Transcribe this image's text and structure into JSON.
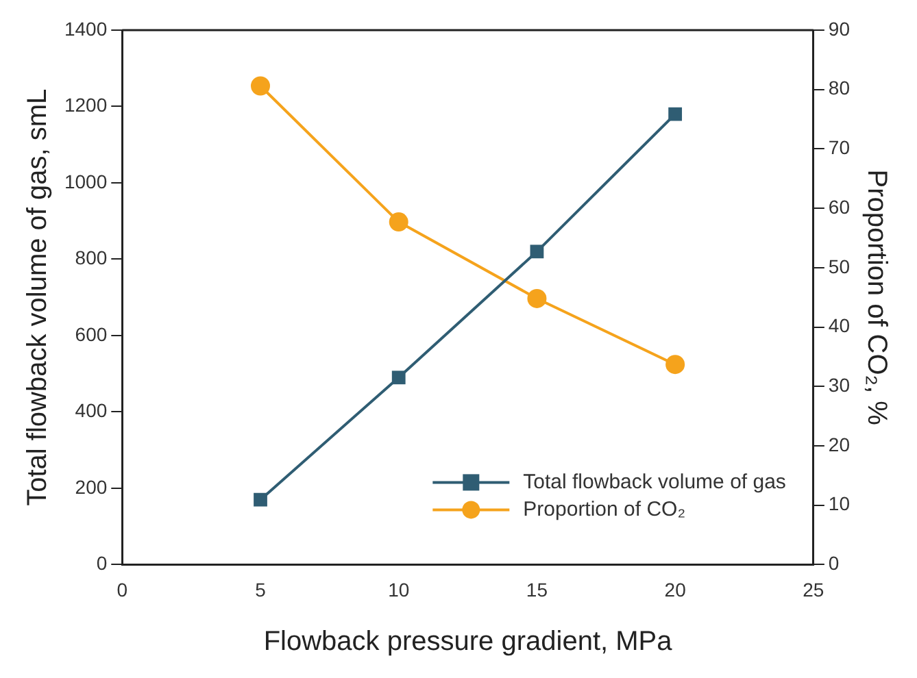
{
  "chart_data": {
    "type": "line",
    "xlabel": "Flowback pressure gradient, MPa",
    "ylabel": "Total flowback volume of gas, smL",
    "y2label": "Proportion of CO₂, %",
    "x": [
      5,
      10,
      15,
      20
    ],
    "series": [
      {
        "name": "Total flowback volume of gas",
        "color": "#2f5d73",
        "values": [
          170,
          490,
          820,
          1180
        ],
        "marker": "square"
      },
      {
        "name": "Proportion of CO₂",
        "color": "#f5a31c",
        "values": [
          80.6,
          57.7,
          44.8,
          33.7
        ],
        "marker": "circle",
        "axis": "y2"
      }
    ],
    "xlim": [
      0,
      25
    ],
    "xticks": [
      0,
      5,
      10,
      15,
      20,
      25
    ],
    "ylim": [
      0,
      1400
    ],
    "yticks": [
      0,
      200,
      400,
      600,
      800,
      1000,
      1200,
      1400
    ],
    "y2lim": [
      0,
      90
    ],
    "y2ticks": [
      0,
      10,
      20,
      30,
      40,
      50,
      60,
      70,
      80,
      90
    ],
    "grid": false,
    "legend": "bottom right",
    "line_style": "solid"
  }
}
